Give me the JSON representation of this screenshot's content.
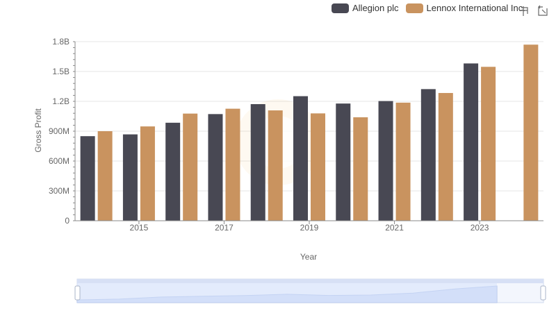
{
  "legend": {
    "items": [
      {
        "label": "Allegion plc",
        "color": "#484853"
      },
      {
        "label": "Lennox International Inc.",
        "color": "#c9935f"
      }
    ]
  },
  "toolbox": {
    "icons": [
      "zoom-icon",
      "zoom-reset-icon"
    ]
  },
  "chart_data": {
    "type": "bar",
    "x": [
      2014,
      2015,
      2016,
      2017,
      2018,
      2019,
      2020,
      2021,
      2022,
      2023,
      2024
    ],
    "xtick_labels": [
      "2015",
      "2017",
      "2019",
      "2021",
      "2023"
    ],
    "xlabel": "Year",
    "ylabel": "Gross Profit",
    "ylim": [
      0,
      1800000000
    ],
    "ytick_labels": [
      "0",
      "300M",
      "600M",
      "900M",
      "1.2B",
      "1.5B",
      "1.8B"
    ],
    "grid": true,
    "legend_position": "top-right",
    "series": [
      {
        "name": "Allegion plc",
        "color": "#484853",
        "values": [
          850000000,
          868000000,
          985000000,
          1072000000,
          1172000000,
          1252000000,
          1178000000,
          1203000000,
          1323000000,
          1581000000,
          null
        ]
      },
      {
        "name": "Lennox International Inc.",
        "color": "#c9935f",
        "values": [
          900000000,
          948000000,
          1077000000,
          1126000000,
          1109000000,
          1079000000,
          1040000000,
          1187000000,
          1284000000,
          1547000000,
          1770000000
        ]
      }
    ]
  }
}
